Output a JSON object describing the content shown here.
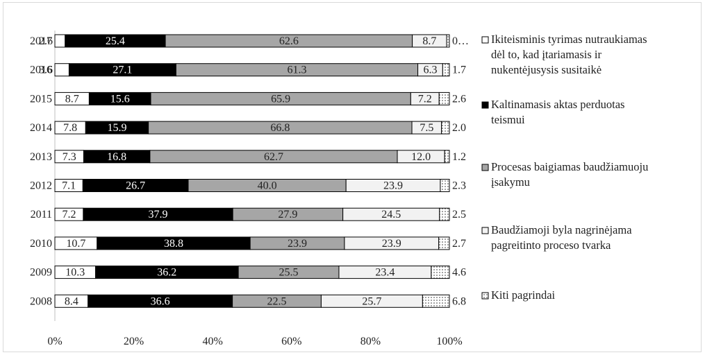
{
  "chart_data": {
    "type": "bar",
    "orientation": "horizontal",
    "stacked": "percent",
    "categories": [
      "2017",
      "2016",
      "2015",
      "2014",
      "2013",
      "2012",
      "2011",
      "2010",
      "2009",
      "2008"
    ],
    "series": [
      {
        "name": "Ikiteisminis tyrimas nutraukiamas dėl to, kad įtariamasis ir nukentėjusysis susitaikė",
        "values": [
          2.6,
          3.6,
          8.7,
          7.8,
          7.3,
          7.1,
          7.2,
          10.7,
          10.3,
          8.4
        ],
        "fill": "#ffffff",
        "pattern": "solid"
      },
      {
        "name": "Kaltinamasis aktas perduotas teismui",
        "values": [
          25.4,
          27.1,
          15.6,
          15.9,
          16.8,
          26.7,
          37.9,
          38.8,
          36.2,
          36.6
        ],
        "fill": "#000000",
        "pattern": "solid"
      },
      {
        "name": "Procesas baigiamas baudžiamuoju įsakymu",
        "values": [
          62.6,
          61.3,
          65.9,
          66.8,
          62.7,
          40.0,
          27.9,
          23.9,
          25.5,
          22.5
        ],
        "fill": "#a6a6a6",
        "pattern": "solid"
      },
      {
        "name": "Baudžiamoji byla nagrinėjama pagreitinto proceso tvarka",
        "values": [
          8.7,
          6.3,
          7.2,
          7.5,
          12.0,
          23.9,
          24.5,
          23.9,
          23.4,
          25.7
        ],
        "fill": "#f2f2f2",
        "pattern": "solid"
      },
      {
        "name": "Kiti pagrindai",
        "values": [
          0.7,
          1.7,
          2.6,
          2.0,
          1.2,
          2.3,
          2.5,
          2.7,
          4.6,
          6.8
        ],
        "fill": "#ffffff",
        "pattern": "dots"
      }
    ],
    "labels": [
      [
        "2.6",
        "25.4",
        "62.6",
        "8.7",
        "0…"
      ],
      [
        "3.6",
        "27.1",
        "61.3",
        "6.3",
        "1.7"
      ],
      [
        "8.7",
        "15.6",
        "65.9",
        "7.2",
        "2.6"
      ],
      [
        "7.8",
        "15.9",
        "66.8",
        "7.5",
        "2.0"
      ],
      [
        "7.3",
        "16.8",
        "62.7",
        "12.0",
        "1.2"
      ],
      [
        "7.1",
        "26.7",
        "40.0",
        "23.9",
        "2.3"
      ],
      [
        "7.2",
        "37.9",
        "27.9",
        "24.5",
        "2.5"
      ],
      [
        "10.7",
        "38.8",
        "23.9",
        "23.9",
        "2.7"
      ],
      [
        "10.3",
        "36.2",
        "25.5",
        "23.4",
        "4.6"
      ],
      [
        "8.4",
        "36.6",
        "22.5",
        "25.7",
        "6.8"
      ]
    ],
    "xticks": [
      "0%",
      "20%",
      "40%",
      "60%",
      "80%",
      "100%"
    ],
    "xlim": [
      0,
      100
    ],
    "legend": {
      "position": "right",
      "entries": [
        [
          "Ikiteisminis tyrimas nutraukiamas",
          "dėl to, kad įtariamasis ir",
          "nukentėjusysis susitaikė"
        ],
        [
          "Kaltinamasis aktas perduotas",
          "teismui"
        ],
        [
          "Procesas baigiamas baudžiamuoju",
          "įsakymu"
        ],
        [
          "Baudžiamoji byla nagrinėjama",
          "pagreitinto proceso tvarka"
        ],
        [
          "Kiti pagrindai"
        ]
      ]
    },
    "grid": false
  }
}
